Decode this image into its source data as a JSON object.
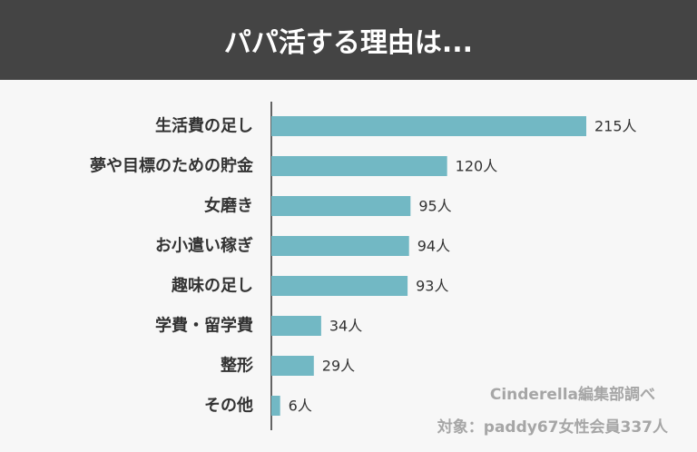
{
  "header": {
    "title": "パパ活する理由は..."
  },
  "credits": {
    "source": "Cinderella編集部調べ",
    "target": "対象：paddy67女性会員337人"
  },
  "colors": {
    "bar": "#72b8c4",
    "header_bg": "#444444",
    "axis": "#333333"
  },
  "chart_data": {
    "type": "bar",
    "orientation": "horizontal",
    "categories": [
      "生活費の足し",
      "夢や目標のための貯金",
      "女磨き",
      "お小遣い稼ぎ",
      "趣味の足し",
      "学費・留学費",
      "整形",
      "その他"
    ],
    "values": [
      215,
      120,
      95,
      94,
      93,
      34,
      29,
      6
    ],
    "value_labels": [
      "215人",
      "120人",
      "95人",
      "94人",
      "93人",
      "34人",
      "29人",
      "6人"
    ],
    "unit": "人",
    "xlim": [
      0,
      215
    ],
    "grid": false
  }
}
